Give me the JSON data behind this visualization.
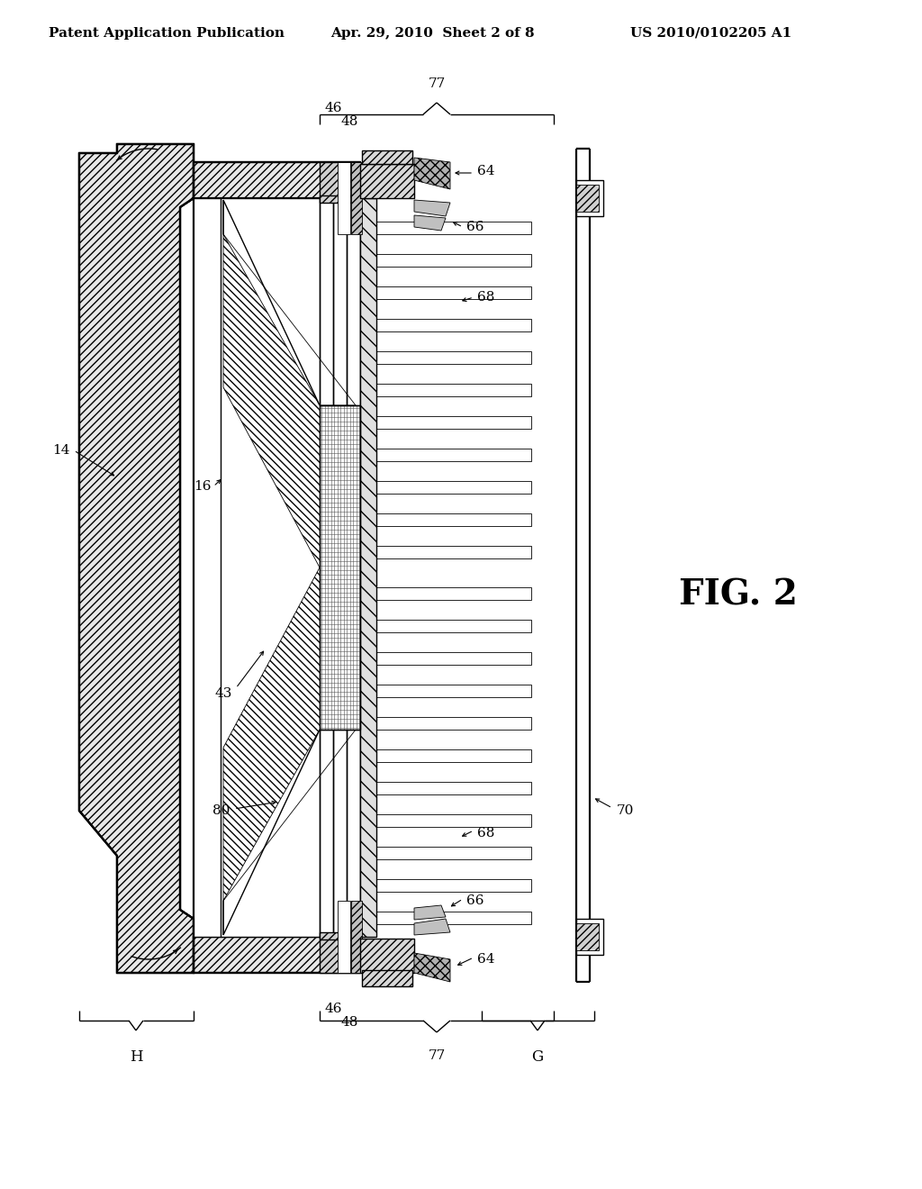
{
  "bg_color": "#ffffff",
  "line_color": "#000000",
  "header_text_left": "Patent Application Publication",
  "header_text_mid": "Apr. 29, 2010  Sheet 2 of 8",
  "header_text_right": "US 2010/0102205 A1",
  "fig_label": "FIG. 2",
  "lw_thick": 1.6,
  "lw_main": 1.0,
  "lw_thin": 0.6
}
